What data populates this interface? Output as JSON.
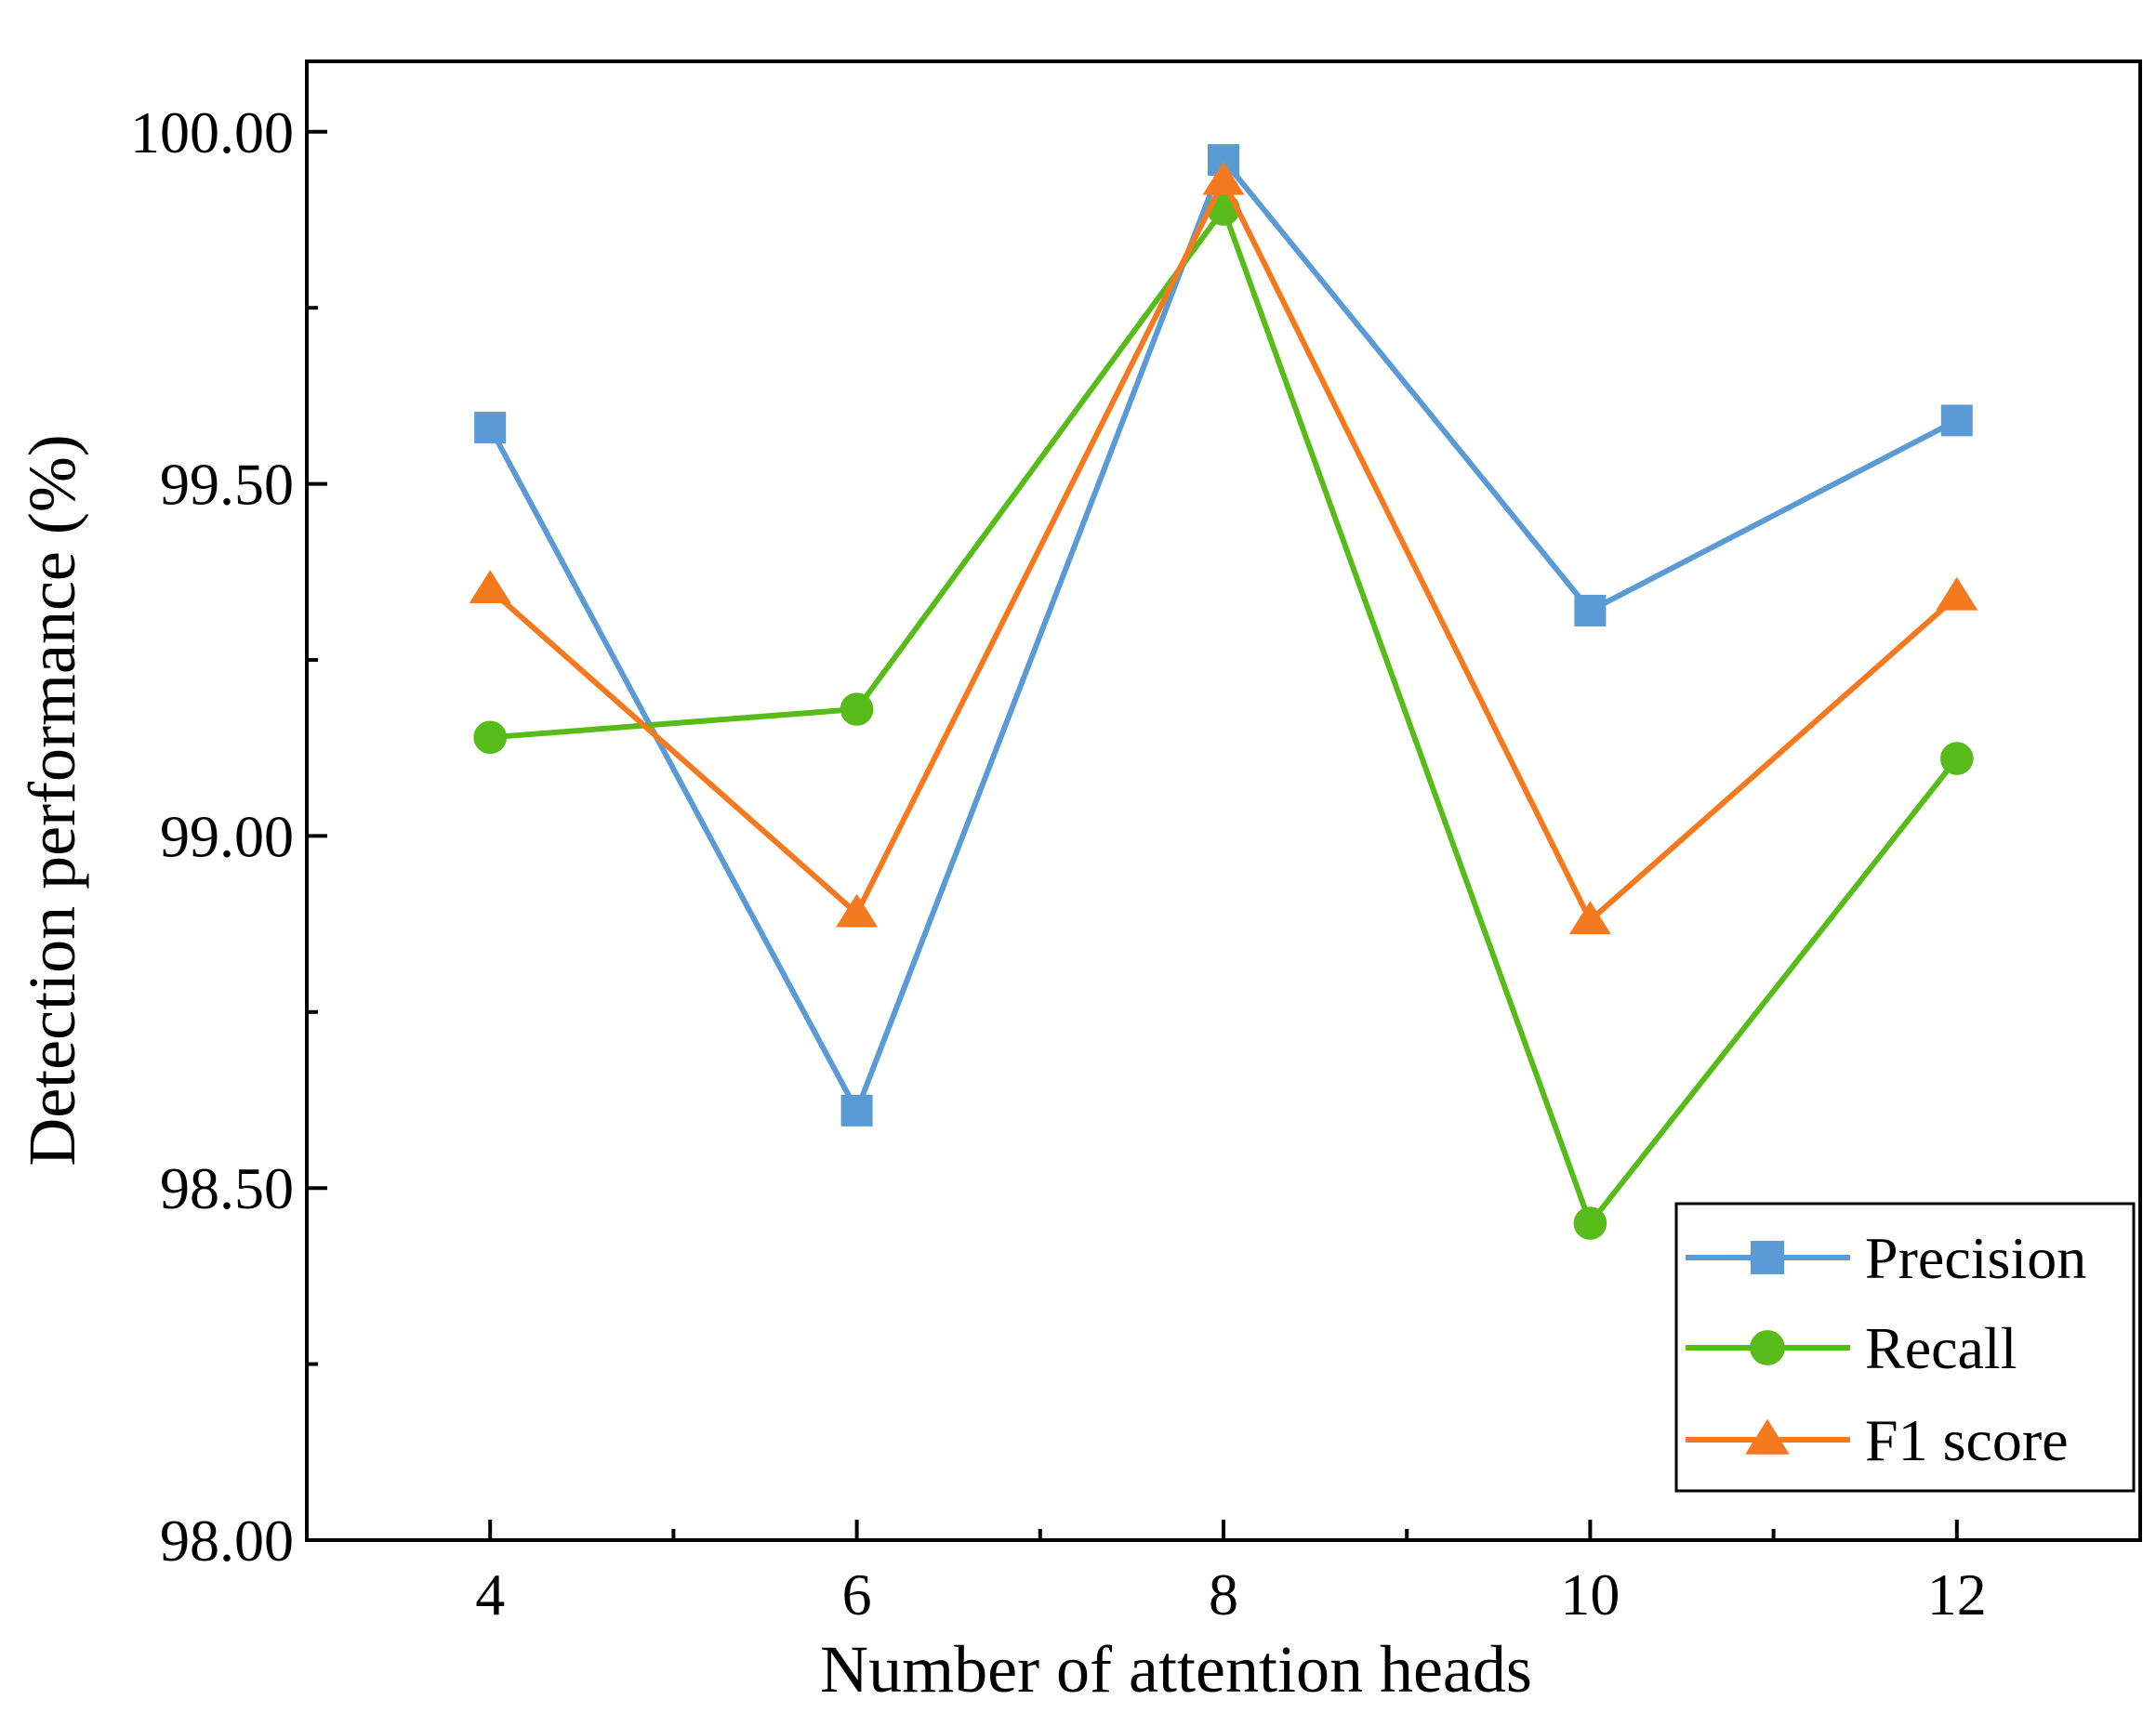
{
  "chart_data": {
    "type": "line",
    "title": "",
    "xlabel": "Number of attention heads",
    "ylabel": "Detection performance (%)",
    "x": [
      4,
      6,
      8,
      10,
      12
    ],
    "xlim": [
      3,
      13
    ],
    "ylim": [
      98.0,
      100.1
    ],
    "x_ticks": [
      "4",
      "6",
      "8",
      "10",
      "12"
    ],
    "y_ticks": [
      "98.00",
      "98.50",
      "99.00",
      "99.50",
      "100.00"
    ],
    "y_tick_values": [
      98.0,
      98.5,
      99.0,
      99.5,
      100.0
    ],
    "y_minor_tick_values": [
      98.25,
      98.75,
      99.25,
      99.75
    ],
    "grid": false,
    "legend_position": "bottom-right",
    "series": [
      {
        "name": "Precision",
        "marker": "square",
        "color": "#5b9bd5",
        "values": [
          99.58,
          98.61,
          99.96,
          99.32,
          99.59
        ]
      },
      {
        "name": "Recall",
        "marker": "circle",
        "color": "#57bb1a",
        "values": [
          99.14,
          99.18,
          99.89,
          98.45,
          99.11
        ]
      },
      {
        "name": "F1 score",
        "marker": "triangle",
        "color": "#f4791f",
        "values": [
          99.35,
          98.89,
          99.93,
          98.88,
          99.34
        ]
      }
    ]
  }
}
